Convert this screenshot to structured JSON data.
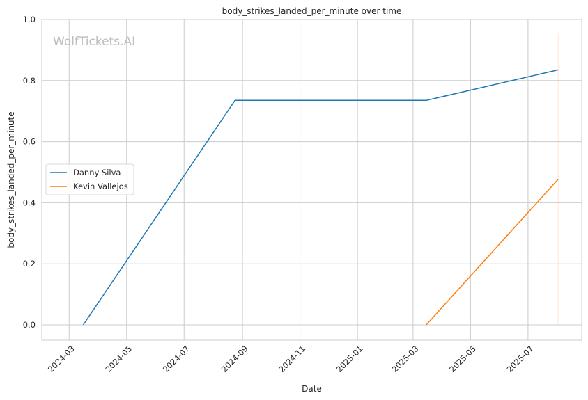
{
  "chart_data": {
    "type": "line",
    "title": "body_strikes_landed_per_minute over time",
    "xlabel": "Date",
    "ylabel": "body_strikes_landed_per_minute",
    "watermark": "WolfTickets.AI",
    "xlim": [
      "2024-02-01",
      "2025-08-27"
    ],
    "ylim": [
      -0.05,
      1.0
    ],
    "yticks": [
      0.0,
      0.2,
      0.4,
      0.6,
      0.8,
      1.0
    ],
    "ytick_labels": [
      "0.0",
      "0.2",
      "0.4",
      "0.6",
      "0.8",
      "1.0"
    ],
    "xticks": [
      "2024-03-01",
      "2024-05-01",
      "2024-07-01",
      "2024-09-01",
      "2024-11-01",
      "2025-01-01",
      "2025-03-01",
      "2025-05-01",
      "2025-07-01"
    ],
    "xtick_labels": [
      "2024-03",
      "2024-05",
      "2024-07",
      "2024-09",
      "2024-11",
      "2025-01",
      "2025-03",
      "2025-05",
      "2025-07"
    ],
    "grid": true,
    "legend_position": "center-left",
    "series": [
      {
        "name": "Danny Silva",
        "color": "#1f77b4",
        "x": [
          "2024-03-16",
          "2024-08-24",
          "2025-03-15",
          "2025-08-02"
        ],
        "y": [
          0.0,
          0.735,
          0.735,
          0.835
        ]
      },
      {
        "name": "Kevin Vallejos",
        "color": "#ff7f0e",
        "x": [
          "2025-03-15",
          "2025-08-02"
        ],
        "y": [
          0.0,
          0.477
        ]
      }
    ]
  }
}
